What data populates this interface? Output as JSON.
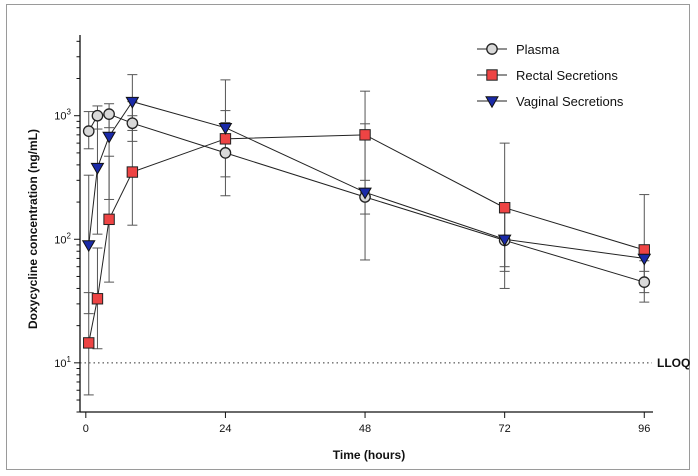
{
  "chart_data": {
    "type": "line",
    "ylabel": "Doxycycline concentration (ng/mL)",
    "xlabel": "Time (hours)",
    "y_scale": "log",
    "ylim": [
      4,
      4500
    ],
    "xlim": [
      -1,
      97.5
    ],
    "xticks": [
      0,
      24,
      48,
      72,
      96
    ],
    "xtick_labels": [
      "0",
      "24",
      "48",
      "72",
      "96"
    ],
    "yticks": [
      10,
      100,
      1000
    ],
    "ytick_labels": [
      {
        "base": "10",
        "exp": "1"
      },
      {
        "base": "10",
        "exp": "2"
      },
      {
        "base": "10",
        "exp": "3"
      }
    ],
    "reference_line": {
      "y": 10,
      "label": "LLOQ",
      "style": "dotted"
    },
    "legend_position": "top-right",
    "series": [
      {
        "name": "Plasma",
        "marker": "circle",
        "color": "#d9d9d9",
        "x": [
          0.5,
          2,
          4,
          8,
          24,
          48,
          72,
          96
        ],
        "y": [
          750,
          1000,
          1030,
          870,
          500,
          220,
          98,
          45
        ],
        "err_low": [
          540,
          780,
          800,
          620,
          225,
          160,
          60,
          31
        ],
        "err_high": [
          1080,
          1200,
          1250,
          1300,
          1100,
          300,
          185,
          67
        ]
      },
      {
        "name": "Rectal Secretions",
        "marker": "square",
        "color": "#ee4444",
        "x": [
          0.5,
          2,
          4,
          8,
          24,
          48,
          72,
          96
        ],
        "y": [
          14.5,
          33,
          145,
          350,
          650,
          700,
          180,
          82
        ],
        "err_low": [
          5.5,
          13,
          45,
          130,
          480,
          240,
          40,
          37
        ],
        "err_high": [
          37,
          85,
          470,
          1000,
          880,
          860,
          600,
          230
        ]
      },
      {
        "name": "Vaginal Secretions",
        "marker": "triangle-down",
        "color": "#1a2aa8",
        "x": [
          0.5,
          2,
          4,
          8,
          24,
          48,
          72,
          96
        ],
        "y": [
          90,
          380,
          680,
          1300,
          800,
          240,
          100,
          70
        ],
        "err_low": [
          25,
          110,
          210,
          760,
          320,
          68,
          55,
          55
        ],
        "err_high": [
          330,
          1050,
          1050,
          2150,
          1950,
          1580,
          175,
          90
        ]
      }
    ]
  }
}
